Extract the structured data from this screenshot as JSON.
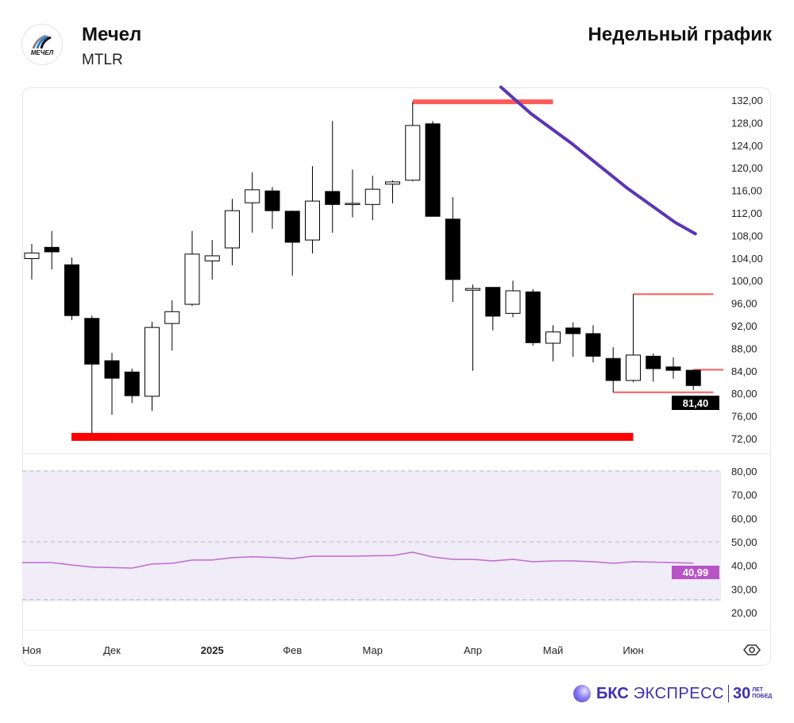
{
  "header": {
    "company": "Мечел",
    "ticker": "MTLR",
    "logo_text": "МЕЧЕЛ",
    "period": "Недельный график"
  },
  "brand": {
    "bks": "БКС",
    "express": "ЭКСПРЕСС",
    "years": "30",
    "years_caption_1": "ЛЕТ",
    "years_caption_2": "ПОБЕД"
  },
  "colors": {
    "up": "#ffffff",
    "down": "#000000",
    "level": "#ff5a5a",
    "support": "#ff0000",
    "ma": "#5b35b5",
    "rsi": "#c06ad0",
    "rsi_bg": "#f0ecf8",
    "last_price_bg": "#000000",
    "rsi_badge": "#b755c7"
  },
  "chart_data": [
    {
      "type": "candlestick",
      "title": "Мечел MTLR — недельный график",
      "ylim": [
        72,
        132
      ],
      "yticks": [
        "72,00",
        "76,00",
        "80,00",
        "84,00",
        "88,00",
        "92,00",
        "96,00",
        "100,00",
        "104,00",
        "108,00",
        "112,00",
        "116,00",
        "120,00",
        "124,00",
        "128,00",
        "132,00"
      ],
      "ytick_values": [
        72,
        76,
        80,
        84,
        88,
        92,
        96,
        100,
        104,
        108,
        112,
        116,
        120,
        124,
        128,
        132
      ],
      "xticks": [
        {
          "label": "Ноя",
          "index": 0
        },
        {
          "label": "Дек",
          "index": 4
        },
        {
          "label": "2025",
          "index": 9
        },
        {
          "label": "Фев",
          "index": 13
        },
        {
          "label": "Мар",
          "index": 17
        },
        {
          "label": "Апр",
          "index": 22
        },
        {
          "label": "Май",
          "index": 26
        },
        {
          "label": "Июн",
          "index": 30
        }
      ],
      "ohlc": [
        [
          103.9,
          106.5,
          100.2,
          104.9
        ],
        [
          105.9,
          108.8,
          102.0,
          105.1
        ],
        [
          102.8,
          104.1,
          93.0,
          93.8
        ],
        [
          93.3,
          93.8,
          72.8,
          85.2
        ],
        [
          85.8,
          87.2,
          76.2,
          82.7
        ],
        [
          83.8,
          84.4,
          78.3,
          79.6
        ],
        [
          79.5,
          92.7,
          76.9,
          91.7
        ],
        [
          92.4,
          96.5,
          87.6,
          94.5
        ],
        [
          95.8,
          108.8,
          95.5,
          104.7
        ],
        [
          103.5,
          107.2,
          100.2,
          104.4
        ],
        [
          105.8,
          114.5,
          102.7,
          112.4
        ],
        [
          113.8,
          119.2,
          108.5,
          116.1
        ],
        [
          115.9,
          116.6,
          109.2,
          112.4
        ],
        [
          112.3,
          112.4,
          100.9,
          106.8
        ],
        [
          107.2,
          120.3,
          104.8,
          114.1
        ],
        [
          115.8,
          128.3,
          108.5,
          113.5
        ],
        [
          113.7,
          119.7,
          111.2,
          113.7
        ],
        [
          113.5,
          118.6,
          110.7,
          116.2
        ],
        [
          117.1,
          117.8,
          113.7,
          117.5
        ],
        [
          117.8,
          131.7,
          117.6,
          127.5
        ],
        [
          127.8,
          128.3,
          111.4,
          111.4
        ],
        [
          110.9,
          114.8,
          96.2,
          100.2
        ],
        [
          98.3,
          99.3,
          84.0,
          98.6
        ],
        [
          98.8,
          98.8,
          91.2,
          93.7
        ],
        [
          94.2,
          100.0,
          93.5,
          98.2
        ],
        [
          98.0,
          98.5,
          88.5,
          89.0
        ],
        [
          88.9,
          92.1,
          85.7,
          90.9
        ],
        [
          91.6,
          92.6,
          86.5,
          90.6
        ],
        [
          90.6,
          92.1,
          85.5,
          86.6
        ],
        [
          86.2,
          88.2,
          80.2,
          82.3
        ],
        [
          82.3,
          97.6,
          82.0,
          86.8
        ],
        [
          86.6,
          87.1,
          82.1,
          84.4
        ],
        [
          84.7,
          86.4,
          82.6,
          84.1
        ],
        [
          84.1,
          84.2,
          80.6,
          81.4
        ]
      ],
      "last_price": "81,40",
      "levels": [
        {
          "name": "resistance-top",
          "price": 131.7,
          "from_index": 19,
          "to_index": 26,
          "style": "thick"
        },
        {
          "name": "support-bottom",
          "price": 72.3,
          "from_index": 2,
          "to_index": 30,
          "style": "heavy"
        },
        {
          "name": "range-high",
          "price": 97.6,
          "from_index": 30,
          "to_index": 34,
          "style": "thin"
        },
        {
          "name": "range-mid",
          "price": 84.2,
          "from_index": 33,
          "to_index": 34.5,
          "style": "thin"
        },
        {
          "name": "range-low",
          "price": 80.2,
          "from_index": 29,
          "to_index": 34,
          "style": "thin"
        }
      ],
      "moving_average": [
        [
          23.4,
          134.3
        ],
        [
          24.9,
          129.6
        ],
        [
          26.9,
          124.4
        ],
        [
          29.7,
          116.4
        ],
        [
          32.1,
          110.3
        ],
        [
          33.1,
          108.3
        ]
      ]
    },
    {
      "type": "line",
      "title": "RSI",
      "ylim": [
        20,
        80
      ],
      "yticks": [
        "20,00",
        "30,00",
        "40,00",
        "50,00",
        "60,00",
        "70,00",
        "80,00"
      ],
      "ytick_values": [
        20,
        30,
        40,
        50,
        60,
        70,
        80
      ],
      "band": [
        25.5,
        80
      ],
      "midline": 50,
      "values": [
        41.2,
        41.2,
        40.2,
        39.3,
        39.1,
        38.9,
        40.6,
        40.9,
        42.3,
        42.3,
        43.3,
        43.7,
        43.4,
        42.9,
        43.9,
        43.9,
        43.9,
        44.1,
        44.2,
        45.6,
        43.6,
        42.6,
        42.6,
        41.9,
        42.6,
        41.6,
        41.9,
        41.9,
        41.6,
        40.9,
        41.6,
        41.4,
        41.2,
        40.99
      ],
      "last_value": "40,99"
    }
  ]
}
